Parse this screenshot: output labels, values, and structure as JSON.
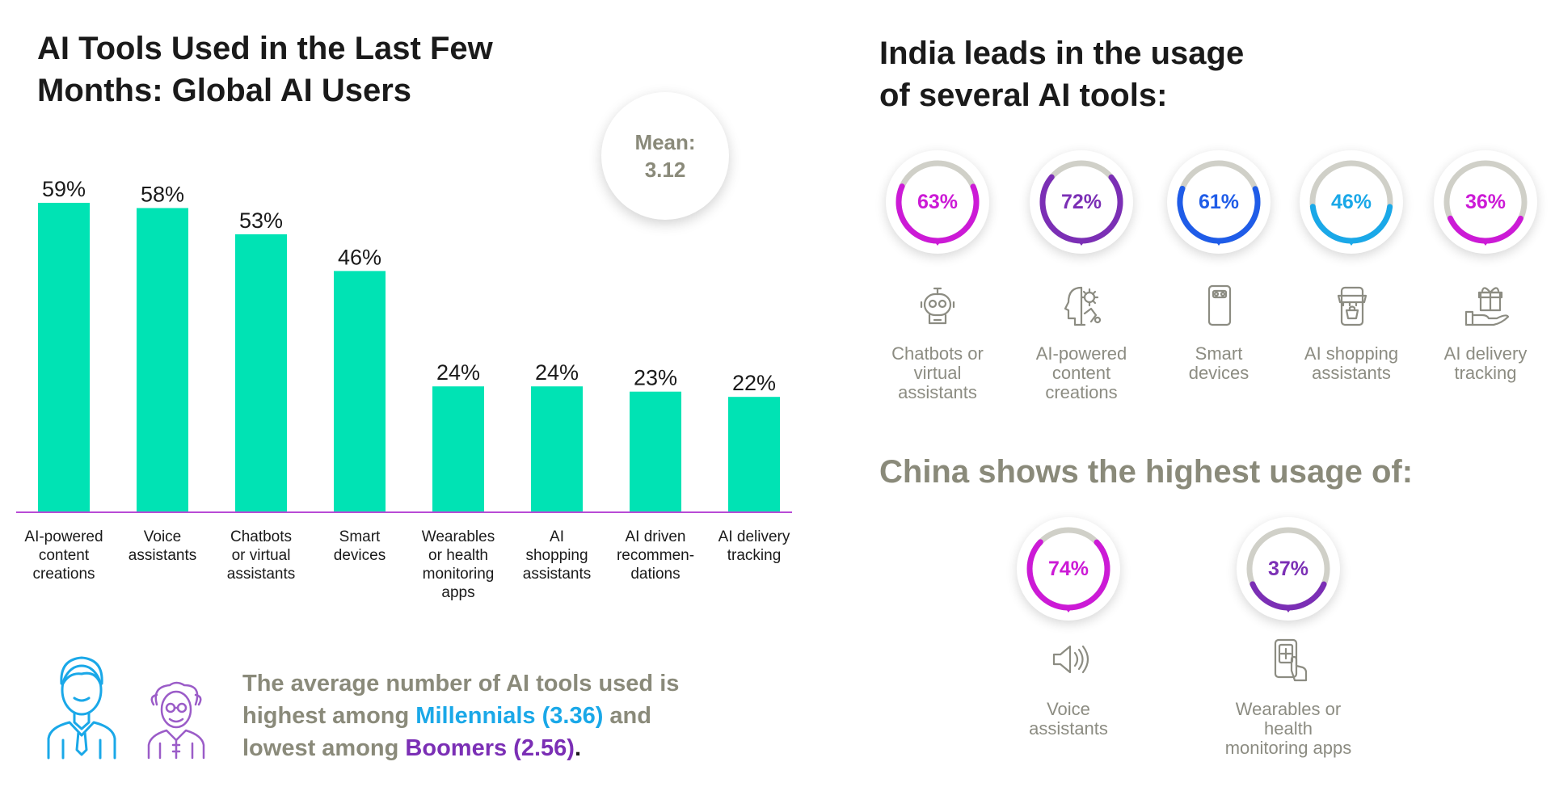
{
  "left": {
    "title_line1": "AI Tools Used in the Last Few",
    "title_line2": "Months: Global AI Users",
    "mean_label": "Mean:",
    "mean_value": "3.12"
  },
  "chart_data": {
    "type": "bar",
    "categories": [
      "AI-powered\ncontent\ncreations",
      "Voice\nassistants",
      "Chatbots\nor virtual\nassistants",
      "Smart\ndevices",
      "Wearables\nor health\nmonitoring\napps",
      "AI\nshopping\nassistants",
      "AI driven\nrecommen-\ndations",
      "AI delivery\ntracking"
    ],
    "values": [
      59,
      58,
      53,
      46,
      24,
      24,
      23,
      22
    ],
    "value_labels": [
      "59%",
      "58%",
      "53%",
      "46%",
      "24%",
      "24%",
      "23%",
      "22%"
    ],
    "ylim": [
      0,
      60
    ],
    "bar_color": "#00e3b4",
    "axis_color": "#b84bd6"
  },
  "india": {
    "heading_line1": "India leads in the usage",
    "heading_line2": "of several AI tools:",
    "items": [
      {
        "pct": 63,
        "label": "63%",
        "color": "#cc1ad6",
        "name": "Chatbots or\nvirtual\nassistants",
        "icon": "robot-icon"
      },
      {
        "pct": 72,
        "label": "72%",
        "color": "#7b2fb5",
        "name": "AI-powered\ncontent\ncreations",
        "icon": "ai-head-icon"
      },
      {
        "pct": 61,
        "label": "61%",
        "color": "#1f5ce8",
        "name": "Smart\ndevices",
        "icon": "smartphone-icon"
      },
      {
        "pct": 46,
        "label": "46%",
        "color": "#1aa8e8",
        "name": "AI shopping\nassistants",
        "icon": "shop-phone-icon"
      },
      {
        "pct": 36,
        "label": "36%",
        "color": "#cc1ad6",
        "name": "AI delivery\ntracking",
        "icon": "gift-hand-icon"
      }
    ]
  },
  "china": {
    "heading": "China shows the highest usage of:",
    "items": [
      {
        "pct": 74,
        "label": "74%",
        "color": "#cc1ad6",
        "name": "Voice\nassistants",
        "icon": "speaker-icon"
      },
      {
        "pct": 37,
        "label": "37%",
        "color": "#7b2fb5",
        "name": "Wearables or health\nmonitoring apps",
        "icon": "health-phone-icon"
      }
    ]
  },
  "note": {
    "part1": "The average number of AI tools used is",
    "part2": "highest among ",
    "millennials": "Millennials (3.36)",
    "part3": " and",
    "part4": "lowest among ",
    "boomers": "Boomers (2.56)",
    "part5": "."
  },
  "colors": {
    "ring_track": "#d0d0c8",
    "millennial_icon": "#1aa8e8",
    "boomer_icon": "#9b5cc8"
  }
}
